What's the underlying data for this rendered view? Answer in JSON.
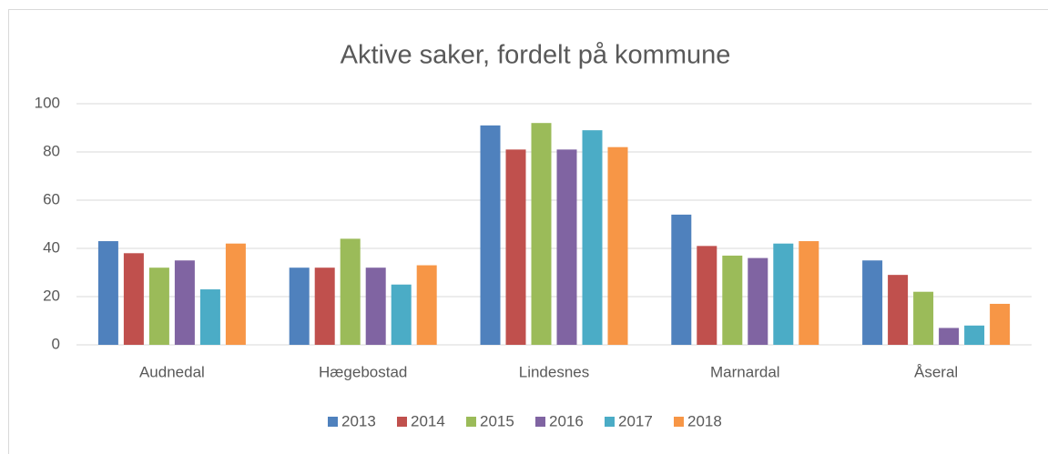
{
  "chart_data": {
    "type": "bar",
    "title": "Aktive saker, fordelt på kommune",
    "categories": [
      "Audnedal",
      "Hægebostad",
      "Lindesnes",
      "Marnardal",
      "Åseral"
    ],
    "series": [
      {
        "name": "2013",
        "color": "#4f81bd",
        "values": [
          43,
          32,
          91,
          54,
          35
        ]
      },
      {
        "name": "2014",
        "color": "#c0504d",
        "values": [
          38,
          32,
          81,
          41,
          29
        ]
      },
      {
        "name": "2015",
        "color": "#9bbb59",
        "values": [
          32,
          44,
          92,
          37,
          22
        ]
      },
      {
        "name": "2016",
        "color": "#8064a2",
        "values": [
          35,
          32,
          81,
          36,
          7
        ]
      },
      {
        "name": "2017",
        "color": "#4bacc6",
        "values": [
          23,
          25,
          89,
          42,
          8
        ]
      },
      {
        "name": "2018",
        "color": "#f79646",
        "values": [
          42,
          33,
          82,
          43,
          17
        ]
      }
    ],
    "ylim": [
      0,
      100
    ],
    "yticks": [
      0,
      20,
      40,
      60,
      80,
      100
    ],
    "grid": true,
    "legend": "bottom"
  }
}
